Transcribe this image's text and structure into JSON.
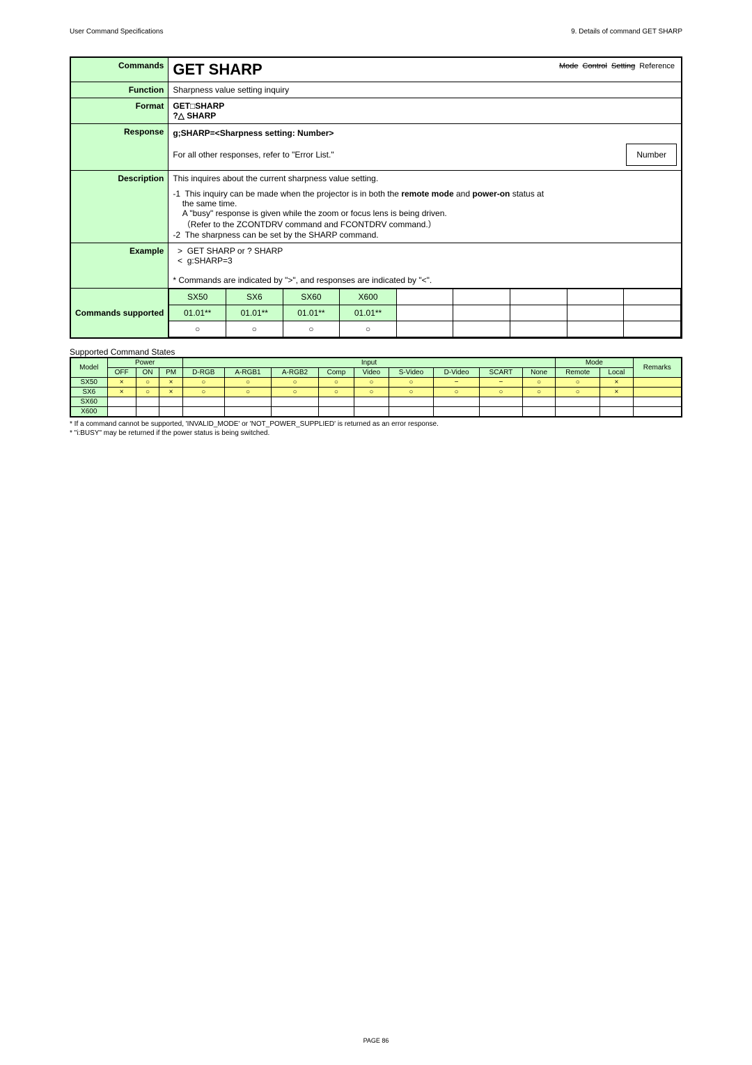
{
  "header": {
    "left": "User Command Specifications",
    "right": "9. Details of command  GET SHARP"
  },
  "spec": {
    "commands_label": "Commands",
    "command_name": "GET SHARP",
    "tags": [
      "Mode",
      "Control",
      "Setting",
      "Reference"
    ],
    "tags_struck": [
      true,
      true,
      true,
      false
    ],
    "function_label": "Function",
    "function_text": "Sharpness value setting inquiry",
    "format_label": "Format",
    "format_lines": [
      "GET□SHARP",
      "?△ SHARP"
    ],
    "response_label": "Response",
    "response_line1": "g;SHARP=<Sharpness setting: Number>",
    "response_line2": "For all other responses, refer to \"Error List.\"",
    "response_box": "Number",
    "description_label": "Description",
    "description_intro": "This inquires about the current sharpness value setting.",
    "description_body": "-1  This inquiry can be made when the projector is in both the remote mode and power-on status at\n    the same time.\n    A \"busy\" response is given while the zoom or focus lens is being driven.\n    （Refer to the ZCONTDRV command and FCONTDRV command.）\n-2  The sharpness can be set by the SHARP command.",
    "example_label": "Example",
    "example_lines": [
      "  >  GET SHARP or ? SHARP",
      "  <  g:SHARP=3",
      "",
      "* Commands are indicated by \">\", and responses are indicated by \"<\"."
    ],
    "supported_label": "Commands supported",
    "supported_models": [
      "SX50",
      "SX6",
      "SX60",
      "X600"
    ],
    "supported_versions": [
      "01.01**",
      "01.01**",
      "01.01**",
      "01.01**"
    ],
    "supported_marks": [
      "○",
      "○",
      "○",
      "○"
    ]
  },
  "states": {
    "title": "Supported Command States",
    "headers_top": [
      "Model",
      "Power",
      "Input",
      "Mode",
      "Remarks"
    ],
    "headers_sub": [
      "OFF",
      "ON",
      "PM",
      "D-RGB",
      "A-RGB1",
      "A-RGB2",
      "Comp",
      "Video",
      "S-Video",
      "D-Video",
      "SCART",
      "None",
      "Remote",
      "Local"
    ],
    "rows": [
      {
        "model": "SX50",
        "cells": [
          "×",
          "○",
          "×",
          "○",
          "○",
          "○",
          "○",
          "○",
          "○",
          "−",
          "−",
          "○",
          "○",
          "×"
        ],
        "rowclass": "row-yellow"
      },
      {
        "model": "SX6",
        "cells": [
          "×",
          "○",
          "×",
          "○",
          "○",
          "○",
          "○",
          "○",
          "○",
          "○",
          "○",
          "○",
          "○",
          "×"
        ],
        "rowclass": "row-yellow"
      },
      {
        "model": "SX60",
        "cells": [
          "",
          "",
          "",
          "",
          "",
          "",
          "",
          "",
          "",
          "",
          "",
          "",
          "",
          ""
        ],
        "rowclass": "row-white"
      },
      {
        "model": "X600",
        "cells": [
          "",
          "",
          "",
          "",
          "",
          "",
          "",
          "",
          "",
          "",
          "",
          "",
          "",
          ""
        ],
        "rowclass": "row-white"
      }
    ],
    "notes": [
      "* If a command cannot be supported, 'INVALID_MODE' or 'NOT_POWER_SUPPLIED' is returned as an error response.",
      "* \"i:BUSY\" may be returned if the power status is being switched."
    ]
  },
  "footer": {
    "page": "PAGE 86"
  }
}
